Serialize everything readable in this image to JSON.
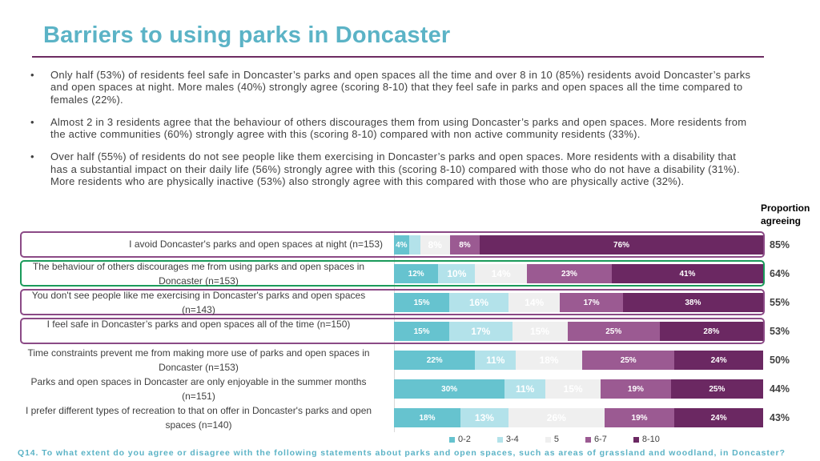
{
  "title": "Barriers to using parks in Doncaster",
  "bullets": [
    "Only half (53%) of residents feel safe in Doncaster’s parks and open spaces all the time and over 8 in 10 (85%) residents avoid Doncaster’s parks and open spaces at night. More males (40%) strongly agree (scoring 8-10) that they feel safe in parks and open spaces all the time compared to females (22%).",
    "Almost 2 in 3 residents agree that the behaviour of others discourages them from using Doncaster’s parks and open spaces. More residents from the active communities (60%) strongly agree with this (scoring 8-10) compared with non active community residents (33%).",
    "Over half (55%) of residents do not see people like them exercising in Doncaster’s parks and open spaces. More residents with a disability that has a substantial impact on their daily life (56%) strongly agree with this (scoring 8-10) compared with those who do not have a disability (31%). More residents who are physically inactive (53%) also strongly agree with this compared with those who are physically active (32%)."
  ],
  "bullet_symbol": "•",
  "proportion_header": "Proportion agreeing",
  "colors": {
    "title": "#5bb3c6",
    "c02": "#66c3cf",
    "c34": "#b3e2ea",
    "c5": "#efefef",
    "c67": "#9b5a92",
    "c810": "#6b2862",
    "highlight_purple": "#8b4a86",
    "highlight_green": "#1a9a5a"
  },
  "chart_data": {
    "type": "bar",
    "orientation": "horizontal-stacked-100",
    "series_names": [
      "0-2",
      "3-4",
      "5",
      "6-7",
      "8-10"
    ],
    "categories": [
      "I avoid Doncaster's parks and open spaces at night (n=153)",
      "The behaviour of others discourages me from using parks and open spaces in Doncaster (n=153)",
      "You don't see people like me exercising in Doncaster's parks and open spaces (n=143)",
      "I feel safe in Doncaster’s parks and open spaces all of the time (n=150)",
      "Time constraints prevent me from making more use of parks and open spaces in Doncaster (n=153)",
      "Parks and open spaces in Doncaster are only enjoyable in the summer months (n=151)",
      "I prefer different types of recreation to that on offer in Doncaster's parks and open spaces (n=140)"
    ],
    "rows": [
      {
        "values": [
          4,
          3,
          8,
          8,
          76
        ],
        "labels": [
          "4%",
          "",
          "8%",
          "8%",
          "76%"
        ],
        "proportion": "85%",
        "highlight": "purple"
      },
      {
        "values": [
          12,
          10,
          14,
          23,
          41
        ],
        "labels": [
          "12%",
          "10%",
          "14%",
          "23%",
          "41%"
        ],
        "proportion": "64%",
        "highlight": "green"
      },
      {
        "values": [
          15,
          16,
          14,
          17,
          38
        ],
        "labels": [
          "15%",
          "16%",
          "14%",
          "17%",
          "38%"
        ],
        "proportion": "55%",
        "highlight": "purple"
      },
      {
        "values": [
          15,
          17,
          15,
          25,
          28
        ],
        "labels": [
          "15%",
          "17%",
          "15%",
          "25%",
          "28%"
        ],
        "proportion": "53%",
        "highlight": "purple"
      },
      {
        "values": [
          22,
          11,
          18,
          25,
          24
        ],
        "labels": [
          "22%",
          "11%",
          "18%",
          "25%",
          "24%"
        ],
        "proportion": "50%",
        "highlight": ""
      },
      {
        "values": [
          30,
          11,
          15,
          19,
          25
        ],
        "labels": [
          "30%",
          "11%",
          "15%",
          "19%",
          "25%"
        ],
        "proportion": "44%",
        "highlight": ""
      },
      {
        "values": [
          18,
          13,
          26,
          19,
          24
        ],
        "labels": [
          "18%",
          "13%",
          "26%",
          "19%",
          "24%"
        ],
        "proportion": "43%",
        "highlight": ""
      }
    ],
    "legend_position": "bottom"
  },
  "footnote": "Q14. To what extent do you agree or disagree with the following statements about parks and open spaces, such as areas of grassland and woodland, in Doncaster?"
}
